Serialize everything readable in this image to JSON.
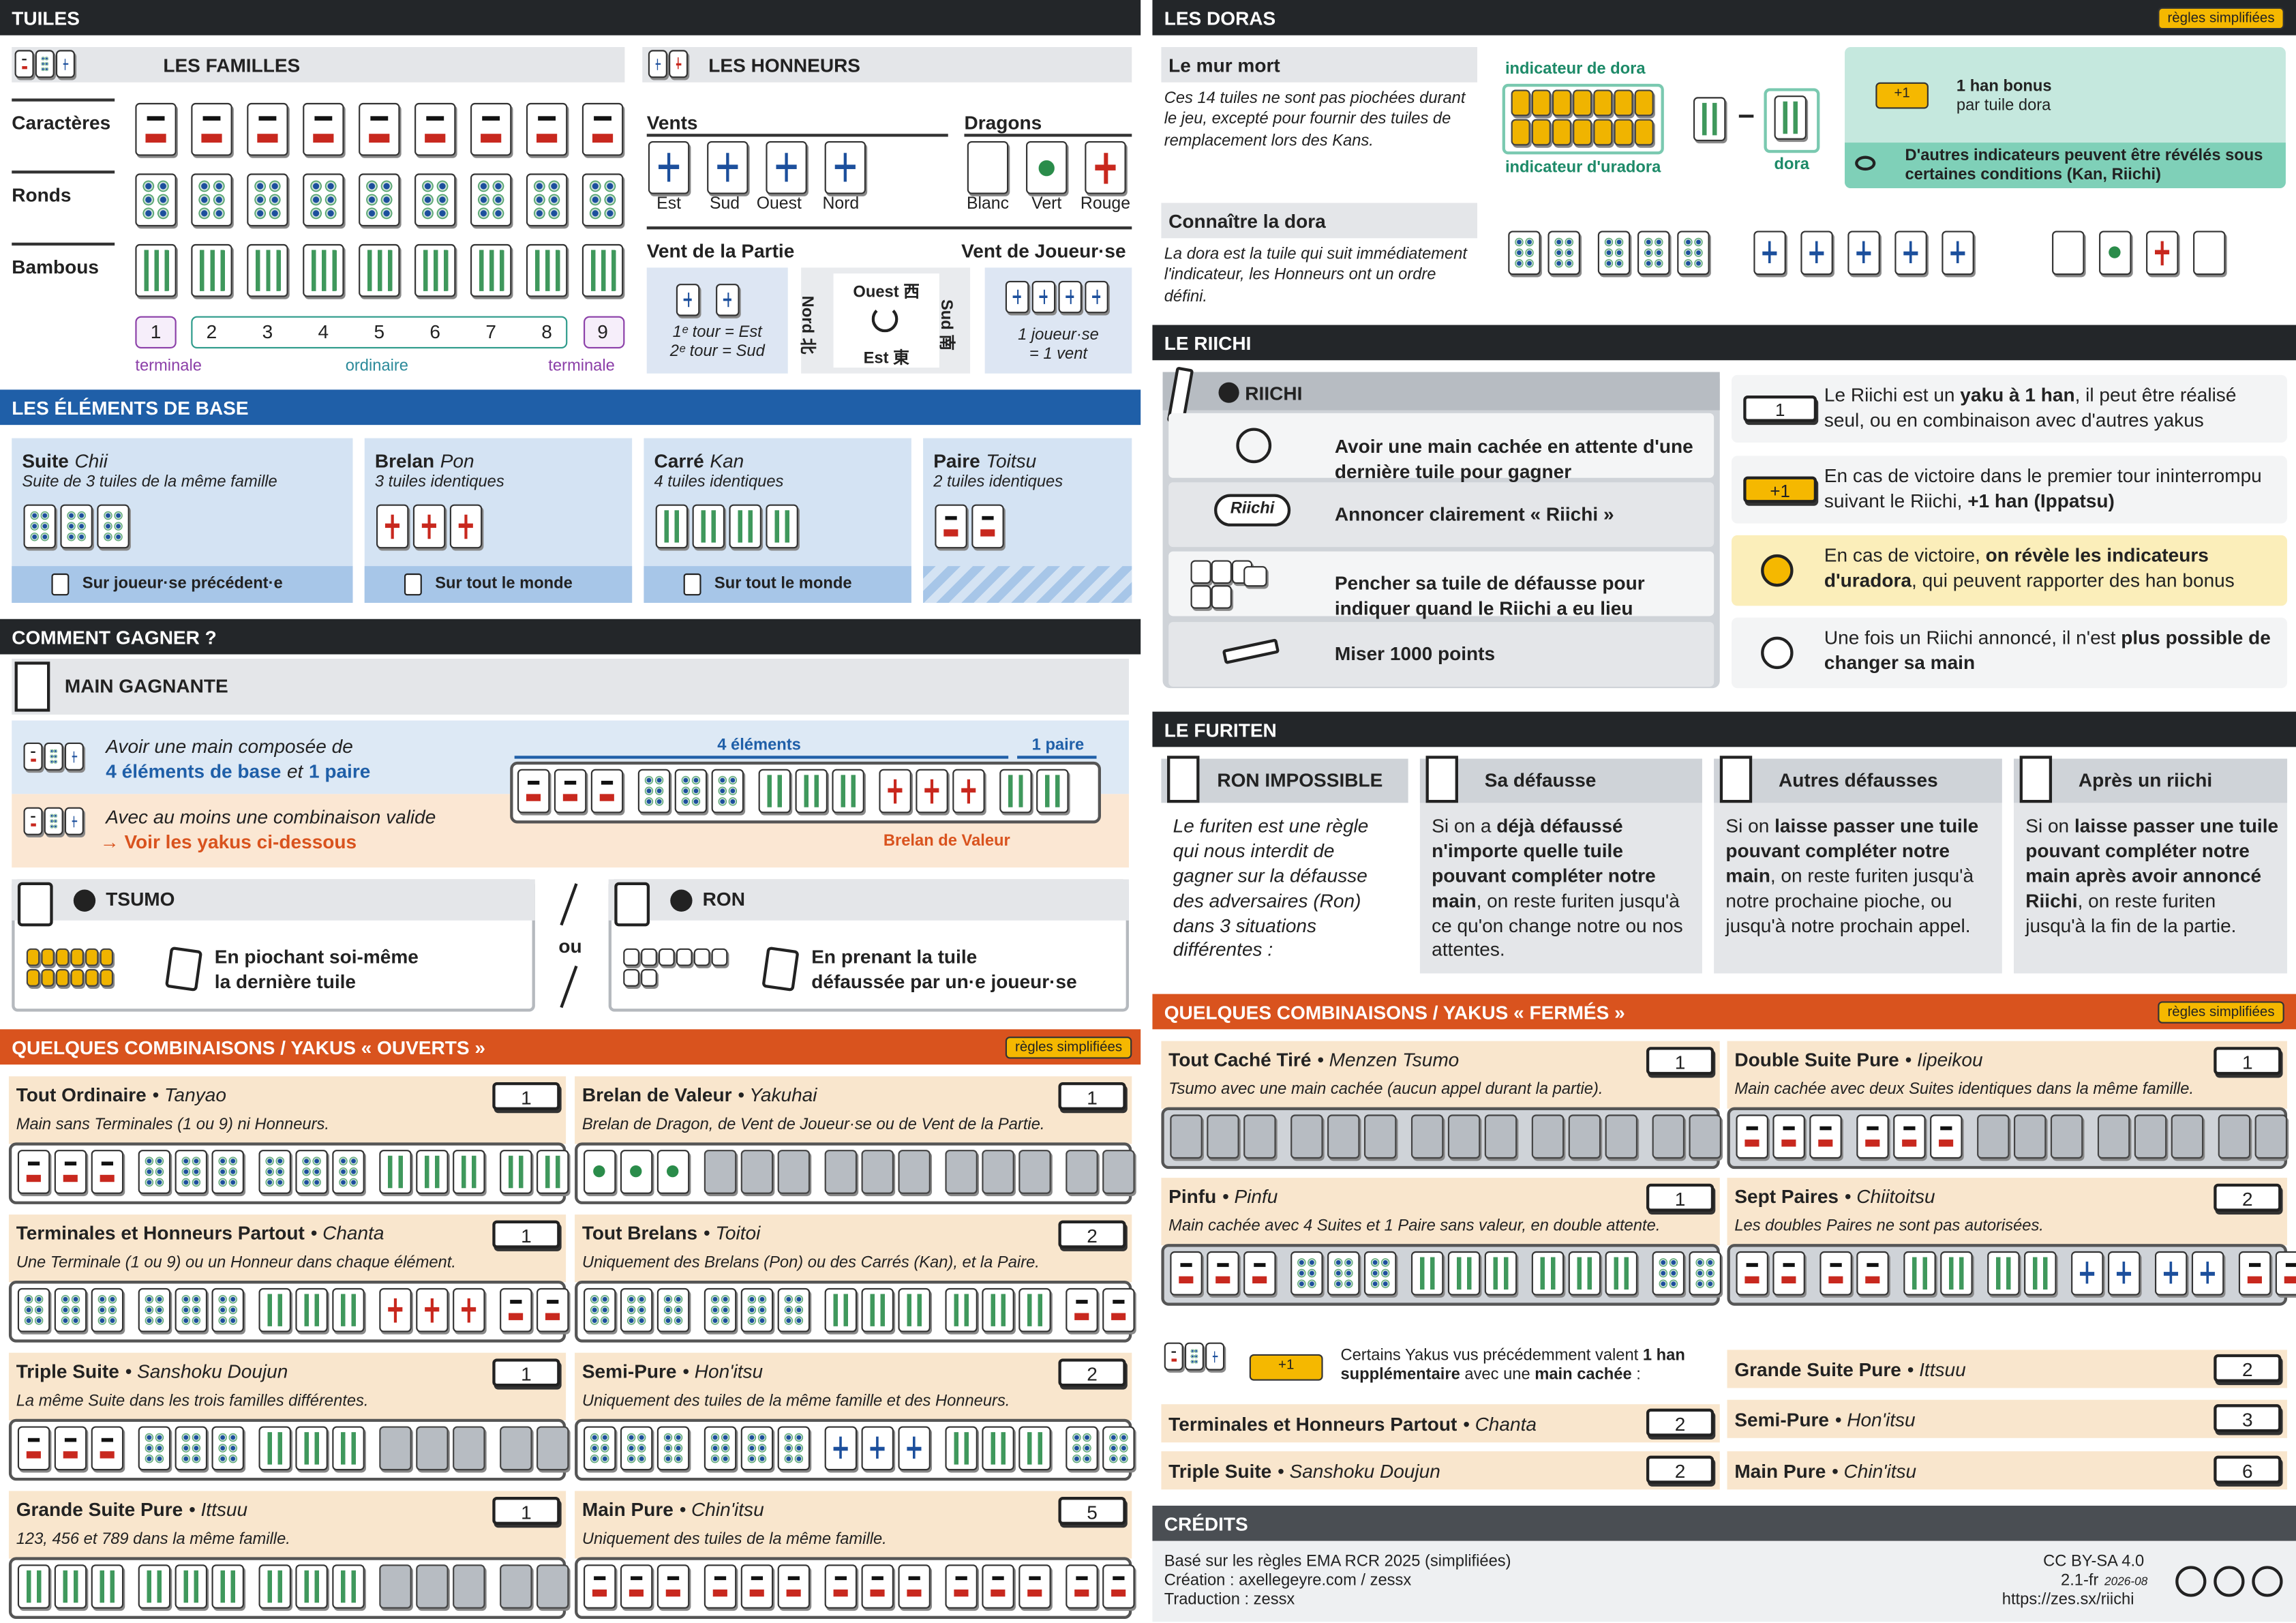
{
  "tuiles": {
    "title": "TUILES",
    "familles": {
      "title": "LES FAMILLES",
      "rows": [
        "Caractères",
        "Ronds",
        "Bambous"
      ],
      "numbers": [
        1,
        2,
        3,
        4,
        5,
        6,
        7,
        8,
        9
      ],
      "ranges": [
        "terminale",
        "ordinaire",
        "terminale"
      ]
    },
    "honneurs": {
      "title": "LES HONNEURS",
      "vents_title": "Vents",
      "vents": [
        "Est",
        "Sud",
        "Ouest",
        "Nord"
      ],
      "dragons_title": "Dragons",
      "dragons": [
        "Blanc",
        "Vert",
        "Rouge"
      ]
    },
    "vent_partie": {
      "title": "Vent de la Partie",
      "lines": [
        "1ᵉ tour = Est",
        "2ᵉ tour = Sud"
      ]
    },
    "compass": {
      "top": "Ouest 西",
      "bottom": "Est 東",
      "left": "Nord 北",
      "right": "Sud 南"
    },
    "vent_joueur": {
      "title": "Vent de Joueur·se",
      "lines": [
        "1 joueur·se",
        "= 1 vent"
      ]
    }
  },
  "elements": {
    "title": "LES ÉLÉMENTS DE BASE",
    "items": [
      {
        "name": "Suite",
        "jp": "Chii",
        "desc": "Suite de 3 tuiles de la même famille",
        "call": "Sur joueur·se précédent·e"
      },
      {
        "name": "Brelan",
        "jp": "Pon",
        "desc": "3 tuiles identiques",
        "call": "Sur tout le monde"
      },
      {
        "name": "Carré",
        "jp": "Kan",
        "desc": "4 tuiles identiques",
        "call": "Sur tout le monde"
      },
      {
        "name": "Paire",
        "jp": "Toitsu",
        "desc": "2 tuiles identiques"
      }
    ]
  },
  "gagner": {
    "title": "COMMENT GAGNER ?",
    "main": "MAIN GAGNANTE",
    "intro": "Avoir une main composée de",
    "composition": [
      "4 éléments de base",
      "et",
      "1 paire"
    ],
    "elements_label": "4 éléments",
    "pair_label": "1 paire",
    "valid": "Avec au moins une combinaison valide",
    "see_yakus": "→ Voir les yakus ci-dessous",
    "brelan": "Brelan de Valeur",
    "tsumo": {
      "title": "TSUMO",
      "lines": [
        "En piochant soi-même",
        "la dernière tuile"
      ]
    },
    "ou": "ou",
    "ron": {
      "title": "RON",
      "lines": [
        "En prenant la tuile",
        "défaussée par un·e joueur·se"
      ]
    }
  },
  "ouverts": {
    "title": "QUELQUES COMBINAISONS / YAKUS « OUVERTS »",
    "badge": "règles simplifiées",
    "yakus": [
      {
        "name": "Tout Ordinaire",
        "jp": "• Tanyao",
        "han": 1,
        "desc": "Main sans Terminales (1 ou 9) ni Honneurs."
      },
      {
        "name": "Terminales et Honneurs Partout",
        "jp": "• Chanta",
        "han": 1,
        "desc": "Une Terminale (1 ou 9) ou un Honneur dans chaque élément."
      },
      {
        "name": "Triple Suite",
        "jp": "• Sanshoku Doujun",
        "han": 1,
        "desc": "La même Suite dans les trois familles différentes."
      },
      {
        "name": "Grande Suite Pure",
        "jp": "• Ittsuu",
        "han": 1,
        "desc": "123, 456 et 789 dans la même famille."
      },
      {
        "name": "Brelan de Valeur",
        "jp": "• Yakuhai",
        "han": 1,
        "desc": "Brelan de Dragon, de Vent de Joueur·se ou de Vent de la Partie."
      },
      {
        "name": "Tout Brelans",
        "jp": "• Toitoi",
        "han": 2,
        "desc": "Uniquement des Brelans (Pon) ou des Carrés (Kan), et la Paire."
      },
      {
        "name": "Semi-Pure",
        "jp": "• Hon'itsu",
        "han": 2,
        "desc": "Uniquement des tuiles de la même famille et des Honneurs."
      },
      {
        "name": "Main Pure",
        "jp": "• Chin'itsu",
        "han": 5,
        "desc": "Uniquement des tuiles de la même famille."
      }
    ]
  },
  "doras": {
    "title": "LES DORAS",
    "badge": "règles simplifiées",
    "mur": {
      "title": "Le mur mort",
      "text": "Ces 14 tuiles ne sont pas piochées durant le jeu, excepté pour fournir des tuiles de remplacement lors des Kans."
    },
    "indicator": "indicateur de dora",
    "ura_indicator": "indicateur d'uradora",
    "dora": "dora",
    "bonus": {
      "badge": "+1",
      "lines": [
        "1 han bonus",
        "par tuile dora"
      ],
      "note": "D'autres indicateurs peuvent être révélés sous certaines conditions (Kan, Riichi)"
    },
    "connaitre": {
      "title": "Connaître la dora",
      "text": "La dora est la tuile qui suit immédiatement l'indicateur, les Honneurs ont un ordre défini."
    }
  },
  "riichi": {
    "title": "LE RIICHI",
    "box_title": "RIICHI",
    "icon_label": "Riichi",
    "steps": [
      "Avoir une main cachée en attente d'une dernière tuile pour gagner",
      "Annoncer clairement « Riichi »",
      "Pencher sa tuile de défausse pour indiquer quand le Riichi a eu lieu",
      "Miser 1000 points"
    ],
    "notes": [
      {
        "badge": "1",
        "text": [
          "Le Riichi est un ",
          "yaku à 1 han",
          ", il peut être réalisé seul, ou en combinaison avec d'autres yakus"
        ]
      },
      {
        "badge": "+1",
        "text": [
          "En cas de victoire dans le premier tour ininterrompu suivant le Riichi, ",
          "+1 han (Ippatsu)"
        ]
      },
      {
        "text": [
          "En cas de victoire, ",
          "on révèle les indicateurs d'uradora",
          ", qui peuvent rapporter des han bonus"
        ]
      },
      {
        "text": [
          "Une fois un Riichi annoncé, il n'est ",
          "plus possible de changer sa main"
        ]
      }
    ]
  },
  "furiten": {
    "title": "LE FURITEN",
    "columns": [
      {
        "title": "RON IMPOSSIBLE",
        "text": "Le furiten est une règle qui nous interdit de gagner sur la défausse des adversaires (Ron) dans 3 situations différentes :"
      },
      {
        "title": "Sa défausse",
        "text": [
          "Si on a ",
          "déjà défaussé n'importe quelle tuile pouvant compléter notre main",
          ", on reste furiten jusqu'à ce qu'on change notre ou nos attentes."
        ]
      },
      {
        "title": "Autres défausses",
        "text": [
          "Si on ",
          "laisse passer une tuile pouvant compléter notre main",
          ", on reste furiten jusqu'à notre prochaine pioche, ou jusqu'à notre prochain appel."
        ]
      },
      {
        "title": "Après un riichi",
        "text": [
          "Si on ",
          "laisse passer une tuile pouvant compléter notre main après avoir annoncé Riichi",
          ", on reste furiten jusqu'à la fin de la partie."
        ]
      }
    ]
  },
  "fermes": {
    "title": "QUELQUES COMBINAISONS / YAKUS « FERMÉS »",
    "badge": "règles simplifiées",
    "yakus": [
      {
        "name": "Tout Caché Tiré",
        "jp": "• Menzen Tsumo",
        "han": 1,
        "desc": "Tsumo avec une main cachée (aucun appel durant la partie)."
      },
      {
        "name": "Pinfu",
        "jp": "• Pinfu",
        "han": 1,
        "desc": "Main cachée avec 4 Suites et 1 Paire sans valeur, en double attente."
      },
      {
        "name": "Double Suite Pure",
        "jp": "• Iipeikou",
        "han": 1,
        "desc": "Main cachée avec deux Suites identiques dans la même famille."
      },
      {
        "name": "Sept Paires",
        "jp": "• Chiitoitsu",
        "han": 2,
        "desc": "Les doubles Paires ne sont pas autorisées."
      }
    ],
    "bonus": {
      "badge": "+1",
      "text": [
        "Certains Yakus vus précédemment valent ",
        "1 han supplémentaire",
        " avec une ",
        "main cachée",
        " :"
      ]
    },
    "bonus_yakus": [
      {
        "name": "Terminales et Honneurs Partout",
        "jp": "• Chanta",
        "han": 2
      },
      {
        "name": "Triple Suite",
        "jp": "• Sanshoku Doujun",
        "han": 2
      },
      {
        "name": "Grande Suite Pure",
        "jp": "• Ittsuu",
        "han": 2
      },
      {
        "name": "Semi-Pure",
        "jp": "• Hon'itsu",
        "han": 3
      },
      {
        "name": "Main Pure",
        "jp": "• Chin'itsu",
        "han": 6
      }
    ]
  },
  "credits": {
    "title": "CRÉDITS",
    "lines": [
      "Basé sur les règles EMA RCR 2025 (simplifiées)",
      "Création : axellegeyre.com / zessx",
      "Traduction : zessx"
    ],
    "license": "CC BY-SA 4.0",
    "version": "2.1-fr",
    "date": "2026-08",
    "url": "https://zes.sx/riichi"
  }
}
